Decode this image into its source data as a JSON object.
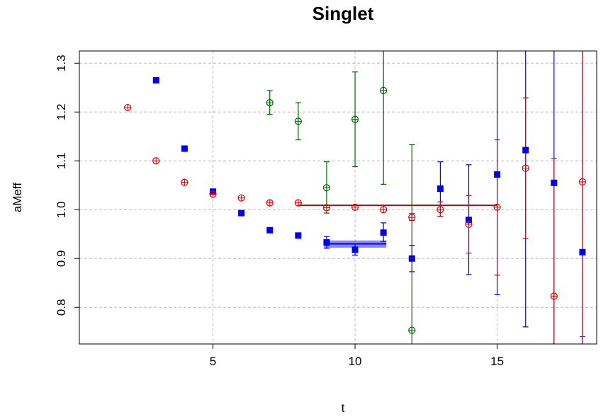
{
  "chart_data": {
    "type": "scatter",
    "title": "Singlet",
    "xlabel": "t",
    "ylabel": "aMeff",
    "xlim": [
      0.3,
      18.5
    ],
    "ylim": [
      0.725,
      1.325
    ],
    "xticks": [
      5,
      10,
      15
    ],
    "yticks": [
      0.8,
      0.9,
      1.0,
      1.1,
      1.2,
      1.3
    ],
    "ytick_labels": [
      "0.8",
      "0.9",
      "1.0",
      "1.1",
      "1.2",
      "1.3"
    ],
    "grid": true,
    "series": [
      {
        "marker": "square",
        "color": "#0000ee",
        "points": [
          {
            "x": 3,
            "y": 1.265
          },
          {
            "x": 4,
            "y": 1.125
          },
          {
            "x": 5,
            "y": 1.037
          },
          {
            "x": 6,
            "y": 0.993
          },
          {
            "x": 7,
            "y": 0.958
          },
          {
            "x": 8,
            "y": 0.947,
            "lo": 0.942,
            "hi": 0.952
          },
          {
            "x": 9,
            "y": 0.933,
            "lo": 0.921,
            "hi": 0.945
          },
          {
            "x": 10,
            "y": 0.918,
            "lo": 0.907,
            "hi": 0.93
          },
          {
            "x": 11,
            "y": 0.953,
            "lo": 0.935,
            "hi": 0.973
          },
          {
            "x": 12,
            "y": 0.9,
            "lo": 0.873,
            "hi": 0.927
          },
          {
            "x": 13,
            "y": 1.043,
            "lo": 0.986,
            "hi": 1.098
          },
          {
            "x": 14,
            "y": 0.979,
            "lo": 0.867,
            "hi": 1.092
          },
          {
            "x": 15,
            "y": 1.072,
            "lo": 0.826,
            "hi": 1.325
          },
          {
            "x": 16,
            "y": 1.122,
            "lo": 0.76,
            "hi": 1.325
          },
          {
            "x": 17,
            "y": 1.055,
            "lo": 0.725,
            "hi": 1.325
          },
          {
            "x": 18,
            "y": 0.913,
            "lo": 0.725,
            "hi": 1.325
          }
        ],
        "fit": {
          "x_from": 8.9,
          "x_to": 11.1,
          "value": 0.93,
          "band": [
            0.922,
            0.937
          ]
        }
      },
      {
        "marker": "circle-plus",
        "color": "#dd0000",
        "points": [
          {
            "x": 2,
            "y": 1.209
          },
          {
            "x": 3,
            "y": 1.1
          },
          {
            "x": 4,
            "y": 1.056
          },
          {
            "x": 5,
            "y": 1.032
          },
          {
            "x": 6,
            "y": 1.024
          },
          {
            "x": 7,
            "y": 1.014
          },
          {
            "x": 8,
            "y": 1.014
          },
          {
            "x": 9,
            "y": 1.004
          },
          {
            "x": 10,
            "y": 1.005
          },
          {
            "x": 11,
            "y": 1.0
          },
          {
            "x": 12,
            "y": 0.984,
            "lo": 0.978,
            "hi": 0.992
          },
          {
            "x": 13,
            "y": 1.0,
            "lo": 0.986,
            "hi": 1.016
          },
          {
            "x": 14,
            "y": 0.97,
            "lo": 0.911,
            "hi": 1.029
          },
          {
            "x": 15,
            "y": 1.005,
            "lo": 0.866,
            "hi": 1.143
          },
          {
            "x": 16,
            "y": 1.085,
            "lo": 0.941,
            "hi": 1.229
          },
          {
            "x": 17,
            "y": 0.823,
            "lo": 0.725,
            "hi": 1.105
          },
          {
            "x": 18,
            "y": 1.057,
            "lo": 0.74,
            "hi": 1.325
          }
        ],
        "fit": {
          "x_from": 8.0,
          "x_to": 15.0,
          "value": 1.009
        }
      },
      {
        "marker": "circle-plus",
        "color": "#006400",
        "points": [
          {
            "x": 7,
            "y": 1.219,
            "lo": 1.195,
            "hi": 1.244
          },
          {
            "x": 8,
            "y": 1.181,
            "lo": 1.143,
            "hi": 1.219
          },
          {
            "x": 9,
            "y": 1.045,
            "lo": 0.993,
            "hi": 1.098
          },
          {
            "x": 10,
            "y": 1.185,
            "lo": 1.088,
            "hi": 1.282
          },
          {
            "x": 11,
            "y": 1.244,
            "lo": 1.052,
            "hi": 1.325
          },
          {
            "x": 12,
            "y": 0.753,
            "lo": 0.725,
            "hi": 1.133
          }
        ]
      }
    ]
  }
}
